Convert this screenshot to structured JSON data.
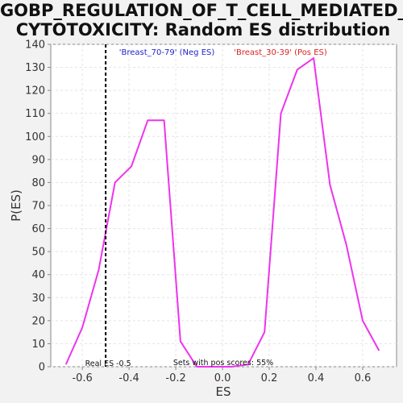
{
  "chart_data": {
    "type": "line",
    "title_line1": "GOBP_REGULATION_OF_T_CELL_MEDIATED_",
    "title_line2": "CYTOTOXICITY: Random ES distribution",
    "xlabel": "ES",
    "ylabel": "P(ES)",
    "xlim": [
      -0.735,
      0.745
    ],
    "ylim": [
      0,
      140
    ],
    "x_ticks": [
      "-0.6",
      "-0.4",
      "-0.2",
      "0.0",
      "0.2",
      "0.4",
      "0.6"
    ],
    "x_tick_values": [
      -0.6,
      -0.4,
      -0.2,
      0.0,
      0.2,
      0.4,
      0.6
    ],
    "y_ticks": [
      "0",
      "10",
      "20",
      "30",
      "40",
      "50",
      "60",
      "70",
      "80",
      "90",
      "100",
      "110",
      "120",
      "130",
      "140"
    ],
    "y_tick_values": [
      0,
      10,
      20,
      30,
      40,
      50,
      60,
      70,
      80,
      90,
      100,
      110,
      120,
      130,
      140
    ],
    "grid": true,
    "series": [
      {
        "color": "#ee33ee",
        "x": [
          -0.67,
          -0.6,
          -0.53,
          -0.46,
          -0.39,
          -0.32,
          -0.25,
          -0.18,
          -0.11,
          -0.04,
          0.04,
          0.11,
          0.18,
          0.25,
          0.32,
          0.39,
          0.46,
          0.53,
          0.6,
          0.67
        ],
        "y": [
          1,
          17,
          42,
          80,
          87,
          107,
          107,
          11,
          0,
          0,
          0,
          1,
          15,
          110,
          129,
          134,
          79,
          53,
          20,
          7
        ]
      }
    ],
    "real_es": {
      "x": -0.5,
      "label": "Real ES -0.5",
      "color": "#000000"
    },
    "legend": {
      "placement": "top",
      "neg": {
        "label": "'Breast_70-79' (Neg ES)",
        "color": "#2222cc"
      },
      "pos": {
        "label": "'Breast_30-39' (Pos ES)",
        "color": "#dd2222"
      }
    },
    "annotation": "Sets with pos scores: 55%",
    "colors": {
      "plot_bg": "#ffffff",
      "page_bg": "#f2f2f2",
      "grid": "#e4e4e4",
      "axis": "#888888"
    }
  }
}
